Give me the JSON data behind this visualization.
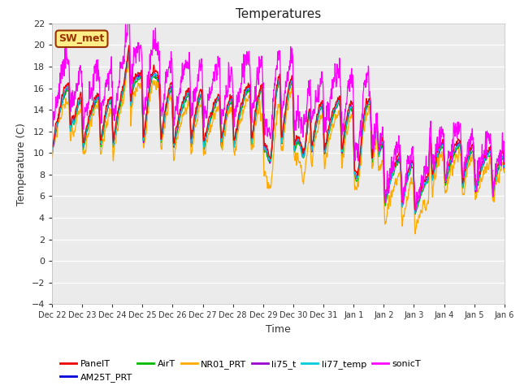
{
  "title": "Temperatures",
  "xlabel": "Time",
  "ylabel": "Temperature (C)",
  "ylim": [
    -4,
    22
  ],
  "yticks": [
    -4,
    -2,
    0,
    2,
    4,
    6,
    8,
    10,
    12,
    14,
    16,
    18,
    20,
    22
  ],
  "bg_color": "#ebebeb",
  "series_colors": {
    "PanelT": "#ee0000",
    "AM25T_PRT": "#0000dd",
    "AirT": "#00bb00",
    "NR01_PRT": "#ffaa00",
    "li75_t": "#9900cc",
    "li77_temp": "#00ccdd",
    "sonicT": "#ff00ff"
  },
  "annotation_text": "SW_met",
  "annotation_bg": "#ffee88",
  "annotation_border": "#993300",
  "xtick_labels": [
    "Dec 22",
    "Dec 23",
    "Dec 24",
    "Dec 25",
    "Dec 26",
    "Dec 27",
    "Dec 28",
    "Dec 29",
    "Dec 30",
    "Dec 31",
    "Jan 1",
    "Jan 2",
    "Jan 3",
    "Jan 4",
    "Jan 5",
    "Jan 6"
  ],
  "n_points": 2160,
  "days": 15
}
